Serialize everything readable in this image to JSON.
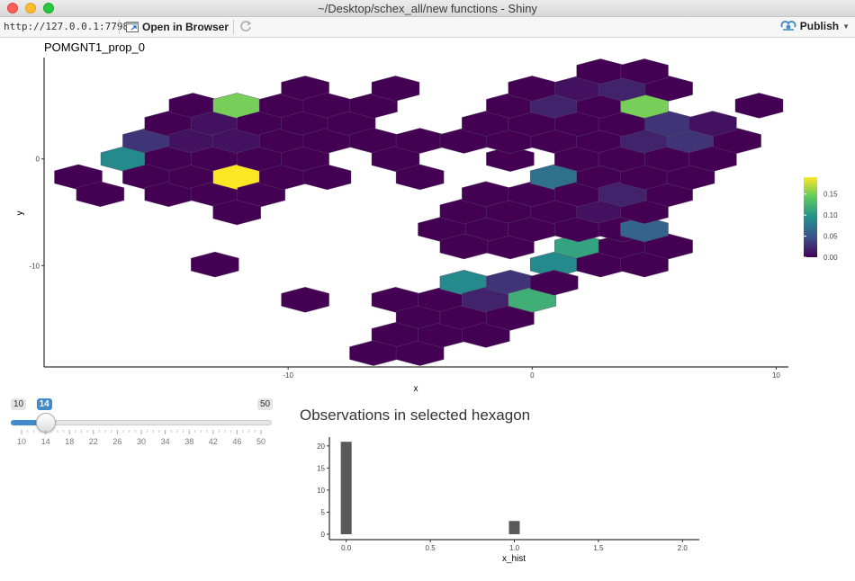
{
  "window": {
    "title": "~/Desktop/schex_all/new functions - Shiny"
  },
  "toolbar": {
    "url": "http://127.0.0.1:7798",
    "open_label": "Open in Browser",
    "publish_label": "Publish"
  },
  "colors": {
    "accent": "#428bca",
    "viridis_low": "#440154",
    "viridis_high": "#fde725"
  },
  "slider": {
    "min": "10",
    "max": "50",
    "value": "14",
    "value_num": 14,
    "min_num": 10,
    "max_num": 50,
    "ticks": [
      "10",
      "14",
      "18",
      "22",
      "26",
      "30",
      "34",
      "38",
      "42",
      "46",
      "50"
    ]
  },
  "hist_section": {
    "title": "Observations in selected hexagon"
  },
  "chart_data": [
    {
      "type": "heatmap",
      "subtype": "hexbin",
      "title": "POMGNT1_prop_0",
      "xlabel": "x",
      "ylabel": "y",
      "xlim": [
        -20,
        10.5
      ],
      "ylim": [
        -19.5,
        9.5
      ],
      "xticks": [
        "-10",
        "0",
        "10"
      ],
      "yticks": [
        "0",
        "-10"
      ],
      "legend": {
        "position": "right",
        "ticks": [
          "0.15",
          "0.10",
          "0.05",
          "0.00"
        ],
        "range": [
          0,
          0.19
        ]
      },
      "grid": false,
      "hexagons": [
        {
          "x": -18.6,
          "y": -1.7,
          "v": 0
        },
        {
          "x": -16.7,
          "y": 0,
          "v": 0.09
        },
        {
          "x": -15.8,
          "y": 1.7,
          "v": 0.03
        },
        {
          "x": -17.7,
          "y": -3.3,
          "v": 0
        },
        {
          "x": -14.9,
          "y": 3.3,
          "v": 0
        },
        {
          "x": -14.9,
          "y": 0,
          "v": 0
        },
        {
          "x": -15.8,
          "y": -1.7,
          "v": 0
        },
        {
          "x": -14.9,
          "y": -3.3,
          "v": 0
        },
        {
          "x": -13.9,
          "y": 5,
          "v": 0
        },
        {
          "x": -13.9,
          "y": 1.7,
          "v": 0.01
        },
        {
          "x": -13.9,
          "y": -1.7,
          "v": 0
        },
        {
          "x": -13,
          "y": 3.3,
          "v": 0.01
        },
        {
          "x": -13,
          "y": 0,
          "v": 0
        },
        {
          "x": -13,
          "y": -3.3,
          "v": 0
        },
        {
          "x": -12.1,
          "y": 5,
          "v": 0.15
        },
        {
          "x": -12.1,
          "y": 1.7,
          "v": 0.01
        },
        {
          "x": -12.1,
          "y": -1.7,
          "v": 0.19
        },
        {
          "x": -12.1,
          "y": -5,
          "v": 0
        },
        {
          "x": -11.1,
          "y": 3.3,
          "v": 0
        },
        {
          "x": -11.1,
          "y": 0,
          "v": 0
        },
        {
          "x": -11.1,
          "y": -3.3,
          "v": 0
        },
        {
          "x": -10.2,
          "y": 5,
          "v": 0
        },
        {
          "x": -10.2,
          "y": 1.7,
          "v": 0
        },
        {
          "x": -10.2,
          "y": -1.7,
          "v": 0
        },
        {
          "x": -9.3,
          "y": 6.6,
          "v": 0
        },
        {
          "x": -9.3,
          "y": 3.3,
          "v": 0
        },
        {
          "x": -9.3,
          "y": 0,
          "v": 0
        },
        {
          "x": -8.4,
          "y": 5,
          "v": 0
        },
        {
          "x": -8.4,
          "y": 1.7,
          "v": 0
        },
        {
          "x": -8.4,
          "y": -1.7,
          "v": 0
        },
        {
          "x": -7.4,
          "y": 3.3,
          "v": 0
        },
        {
          "x": -6.5,
          "y": 5,
          "v": 0
        },
        {
          "x": -6.5,
          "y": 1.7,
          "v": 0
        },
        {
          "x": -5.6,
          "y": 6.6,
          "v": 0
        },
        {
          "x": -5.6,
          "y": 0,
          "v": 0
        },
        {
          "x": -4.6,
          "y": 1.7,
          "v": 0
        },
        {
          "x": -4.6,
          "y": -1.7,
          "v": 0
        },
        {
          "x": -13,
          "y": -9.9,
          "v": 0
        },
        {
          "x": -9.3,
          "y": -13.2,
          "v": 0
        },
        {
          "x": -5.6,
          "y": -13.2,
          "v": 0
        },
        {
          "x": -4.6,
          "y": -14.9,
          "v": 0
        },
        {
          "x": -5.6,
          "y": -16.5,
          "v": 0
        },
        {
          "x": -6.5,
          "y": -18.2,
          "v": 0
        },
        {
          "x": -4.6,
          "y": -18.2,
          "v": 0
        },
        {
          "x": -3.7,
          "y": -13.2,
          "v": 0
        },
        {
          "x": -3.7,
          "y": -16.5,
          "v": 0
        },
        {
          "x": -2.8,
          "y": -11.6,
          "v": 0.09
        },
        {
          "x": -2.8,
          "y": -14.9,
          "v": 0
        },
        {
          "x": -1.9,
          "y": -13.2,
          "v": 0.02
        },
        {
          "x": -1.9,
          "y": -16.5,
          "v": 0
        },
        {
          "x": -0.9,
          "y": -11.6,
          "v": 0.03
        },
        {
          "x": -0.9,
          "y": -14.9,
          "v": 0
        },
        {
          "x": 0,
          "y": -13.2,
          "v": 0.12
        },
        {
          "x": -0.9,
          "y": -8.2,
          "v": 0
        },
        {
          "x": 0.9,
          "y": -9.9,
          "v": 0.09
        },
        {
          "x": 0.9,
          "y": -11.6,
          "v": 0
        },
        {
          "x": 1.9,
          "y": -8.2,
          "v": 0.11
        },
        {
          "x": 2.8,
          "y": -9.9,
          "v": 0
        },
        {
          "x": 3.7,
          "y": -8.2,
          "v": 0
        },
        {
          "x": 4.6,
          "y": -9.9,
          "v": 0
        },
        {
          "x": 5.6,
          "y": -8.2,
          "v": 0
        },
        {
          "x": -1.9,
          "y": -6.6,
          "v": 0
        },
        {
          "x": -3.7,
          "y": -6.6,
          "v": 0
        },
        {
          "x": -2.8,
          "y": -8.2,
          "v": 0
        },
        {
          "x": -2.8,
          "y": -4.9,
          "v": 0
        },
        {
          "x": -0.9,
          "y": -4.9,
          "v": 0
        },
        {
          "x": 0,
          "y": -6.6,
          "v": 0
        },
        {
          "x": 0.9,
          "y": -4.9,
          "v": 0
        },
        {
          "x": 1.9,
          "y": -6.6,
          "v": 0
        },
        {
          "x": 2.8,
          "y": -4.9,
          "v": 0.01
        },
        {
          "x": 3.7,
          "y": -6.6,
          "v": 0
        },
        {
          "x": 4.6,
          "y": -6.6,
          "v": 0.06
        },
        {
          "x": 4.6,
          "y": -4.9,
          "v": 0
        },
        {
          "x": 5.6,
          "y": -3.3,
          "v": 0
        },
        {
          "x": -1.9,
          "y": -3.3,
          "v": 0
        },
        {
          "x": 0,
          "y": -3.3,
          "v": 0
        },
        {
          "x": 0.9,
          "y": -1.7,
          "v": 0.07
        },
        {
          "x": 1.9,
          "y": -3.3,
          "v": 0
        },
        {
          "x": 2.8,
          "y": -1.7,
          "v": 0
        },
        {
          "x": 3.7,
          "y": -3.3,
          "v": 0.02
        },
        {
          "x": 4.6,
          "y": -1.7,
          "v": 0
        },
        {
          "x": 6.5,
          "y": -1.7,
          "v": 0
        },
        {
          "x": -0.9,
          "y": 0,
          "v": 0
        },
        {
          "x": -2.8,
          "y": 1.7,
          "v": 0
        },
        {
          "x": -0.9,
          "y": 1.7,
          "v": 0
        },
        {
          "x": 0.9,
          "y": 1.7,
          "v": 0
        },
        {
          "x": 1.9,
          "y": 0,
          "v": 0
        },
        {
          "x": 2.8,
          "y": 1.7,
          "v": 0
        },
        {
          "x": 3.7,
          "y": 0,
          "v": 0
        },
        {
          "x": 4.6,
          "y": 1.7,
          "v": 0.02
        },
        {
          "x": 5.6,
          "y": 0,
          "v": 0
        },
        {
          "x": 6.5,
          "y": 1.7,
          "v": 0.03
        },
        {
          "x": 7.4,
          "y": 0,
          "v": 0
        },
        {
          "x": 8.4,
          "y": 1.7,
          "v": 0
        },
        {
          "x": -1.9,
          "y": 3.3,
          "v": 0
        },
        {
          "x": 0,
          "y": 3.3,
          "v": 0
        },
        {
          "x": 1.9,
          "y": 3.3,
          "v": 0
        },
        {
          "x": 3.7,
          "y": 3.3,
          "v": 0
        },
        {
          "x": 5.6,
          "y": 3.3,
          "v": 0.03
        },
        {
          "x": 7.4,
          "y": 3.3,
          "v": 0.01
        },
        {
          "x": -0.9,
          "y": 5,
          "v": 0
        },
        {
          "x": 0.9,
          "y": 5,
          "v": 0.02
        },
        {
          "x": 2.8,
          "y": 5,
          "v": 0
        },
        {
          "x": 4.6,
          "y": 5,
          "v": 0.15
        },
        {
          "x": 9.3,
          "y": 5,
          "v": 0
        },
        {
          "x": 0,
          "y": 6.6,
          "v": 0
        },
        {
          "x": 1.9,
          "y": 6.6,
          "v": 0.01
        },
        {
          "x": 3.7,
          "y": 6.6,
          "v": 0.02
        },
        {
          "x": 5.6,
          "y": 6.6,
          "v": 0
        },
        {
          "x": 2.8,
          "y": 8.2,
          "v": 0
        },
        {
          "x": 4.6,
          "y": 8.2,
          "v": 0
        }
      ]
    },
    {
      "type": "bar",
      "title": "",
      "xlabel": "x_hist",
      "ylabel": "",
      "xlim": [
        -0.1,
        2.1
      ],
      "ylim": [
        0,
        22
      ],
      "xticks": [
        "0.0",
        "0.5",
        "1.0",
        "1.5",
        "2.0"
      ],
      "yticks": [
        "0",
        "5",
        "10",
        "15",
        "20"
      ],
      "bars": [
        {
          "x": 0.0,
          "value": 21
        },
        {
          "x": 1.0,
          "value": 4
        },
        {
          "x": 2.0,
          "value": 1
        }
      ]
    }
  ]
}
